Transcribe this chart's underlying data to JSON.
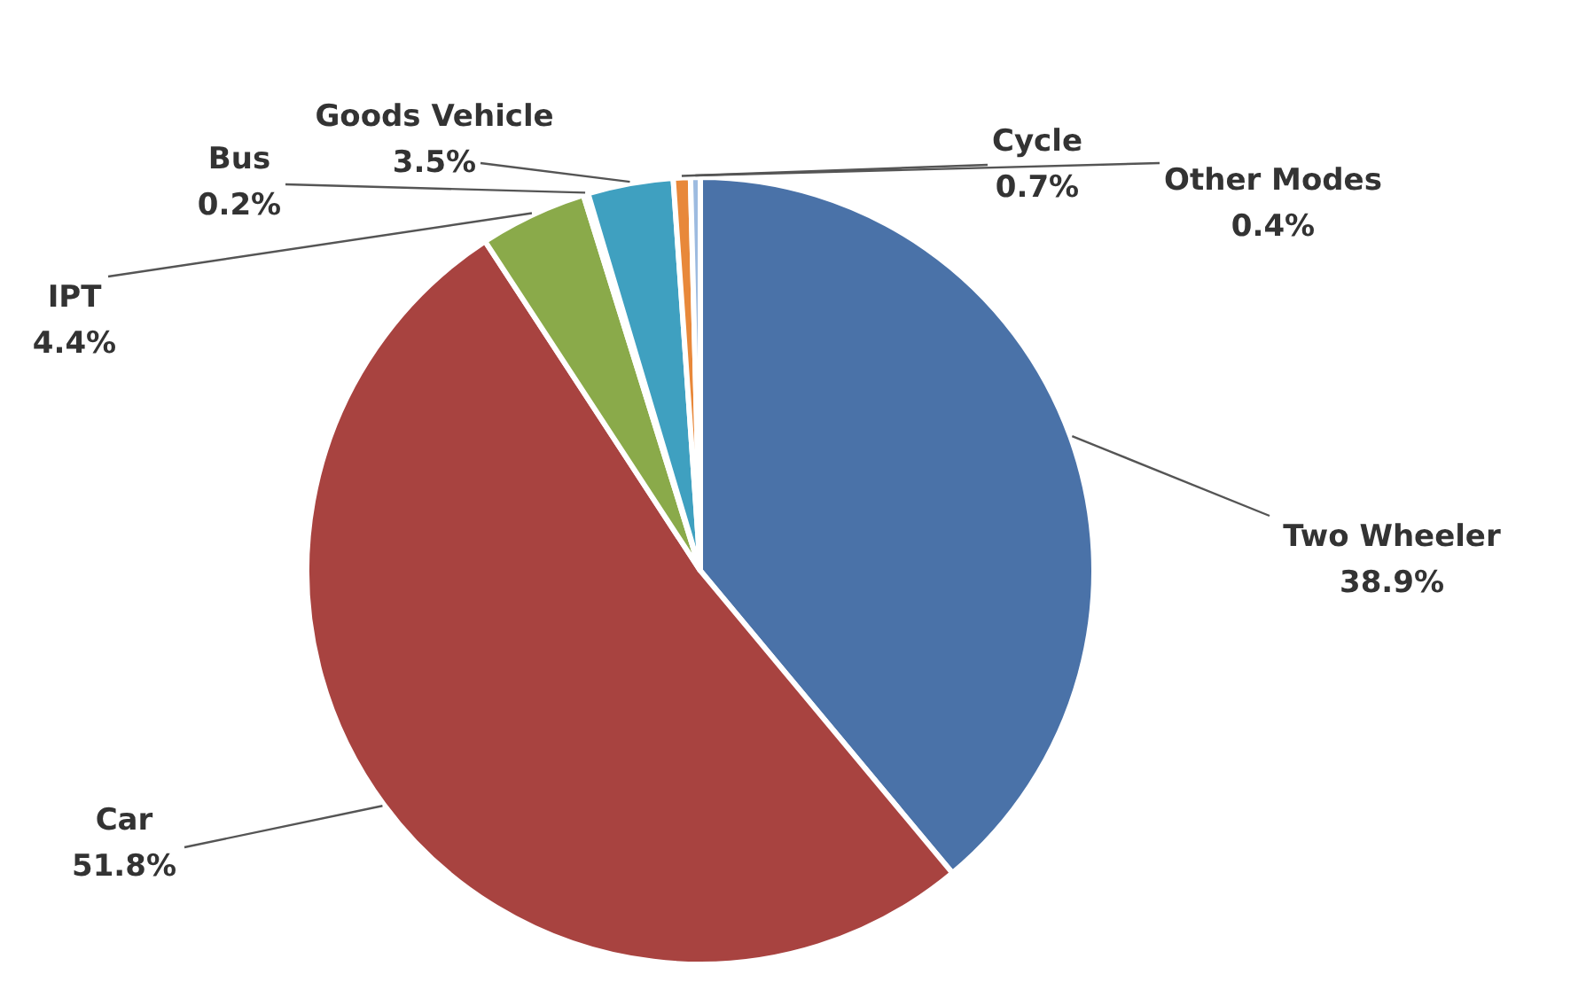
{
  "chart_data": {
    "type": "pie",
    "categories": [
      "Two Wheeler",
      "Car",
      "IPT",
      "Bus",
      "Goods Vehicle",
      "Cycle",
      "Other Modes"
    ],
    "values": [
      38.9,
      51.8,
      4.4,
      0.2,
      3.5,
      0.7,
      0.4
    ],
    "value_labels": [
      "38.9%",
      "51.8%",
      "4.4%",
      "0.2%",
      "3.5%",
      "0.7%",
      "0.4%"
    ],
    "colors": [
      "#4a72a8",
      "#a84340",
      "#8aaa4a",
      "#7d5fa0",
      "#3fa0c0",
      "#e8883a",
      "#9dbbe0"
    ]
  }
}
